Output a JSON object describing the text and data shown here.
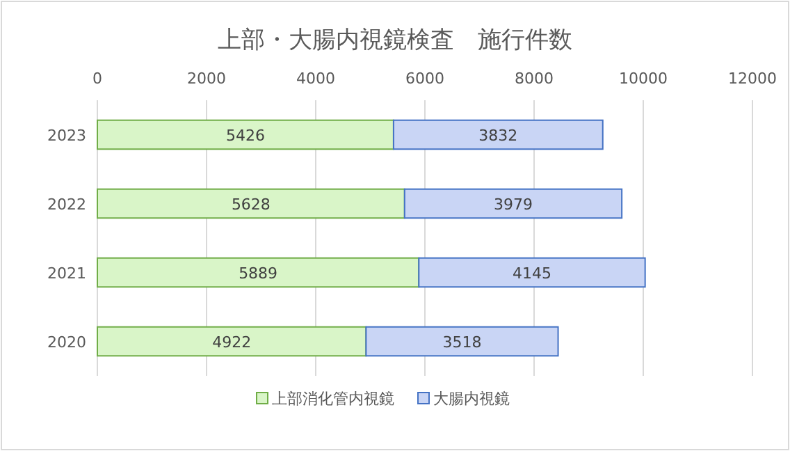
{
  "chart_data": {
    "type": "bar",
    "title": "上部・大腸内視鏡検査　施行件数",
    "orientation": "horizontal",
    "stacked": true,
    "categories": [
      "2023",
      "2022",
      "2021",
      "2020"
    ],
    "series": [
      {
        "name": "上部消化管内視鏡",
        "color": "#d9f5c8",
        "values": [
          5426,
          5628,
          5889,
          4922
        ]
      },
      {
        "name": "大腸内視鏡",
        "color": "#c9d5f5",
        "values": [
          3832,
          3979,
          4145,
          3518
        ]
      }
    ],
    "xlim": [
      0,
      12000
    ],
    "xticks": [
      0,
      2000,
      4000,
      6000,
      8000,
      10000,
      12000
    ],
    "grid": "x",
    "legend": "bottom",
    "data_labels": true
  }
}
